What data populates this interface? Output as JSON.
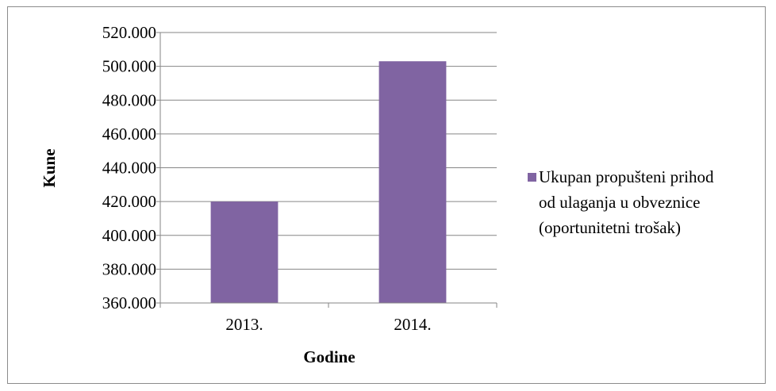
{
  "chart_data": {
    "type": "bar",
    "categories": [
      "2013.",
      "2014."
    ],
    "series": [
      {
        "name": "Ukupan propušteni prihod od ulaganja u obveznice (oportunitetni trošak)",
        "values": [
          420000,
          503000
        ],
        "color": "#8064a2"
      }
    ],
    "xlabel": "Godine",
    "ylabel": "Kune",
    "ylim": [
      360000,
      520000
    ],
    "yticks": [
      360000,
      380000,
      400000,
      420000,
      440000,
      460000,
      480000,
      500000,
      520000
    ],
    "ytick_labels": [
      "360.000",
      "380.000",
      "400.000",
      "420.000",
      "440.000",
      "460.000",
      "480.000",
      "500.000",
      "520.000"
    ],
    "grid": true,
    "legend_position": "right",
    "legend_lines": [
      "Ukupan propušteni prihod",
      "od ulaganja u obveznice",
      "(oportunitetni trošak)"
    ]
  }
}
